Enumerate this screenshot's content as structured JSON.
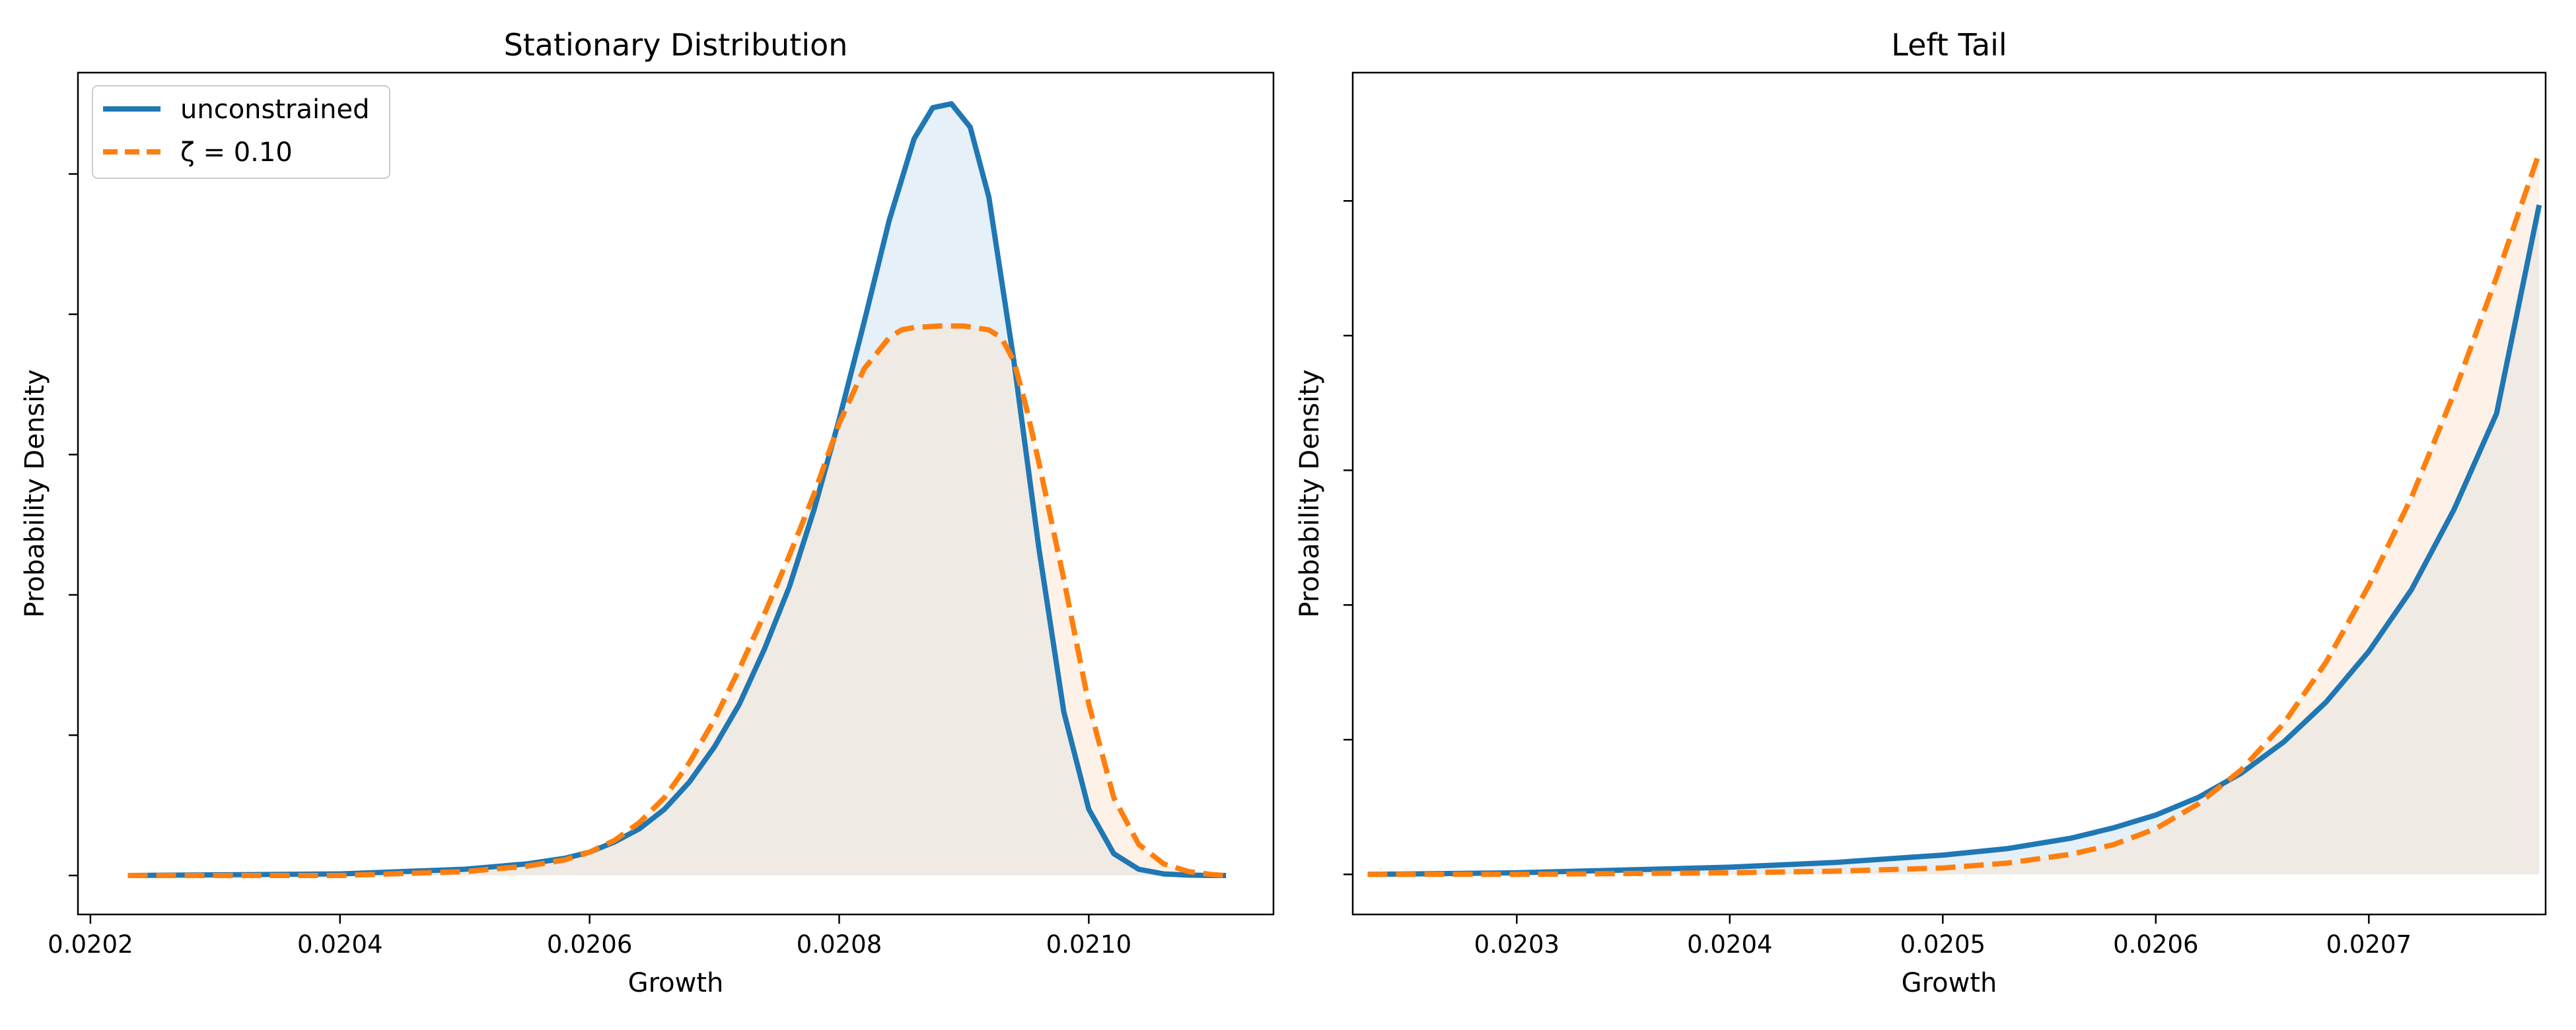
{
  "chart_data": [
    {
      "type": "area",
      "title": "Stationary Distribution",
      "xlabel": "Growth",
      "ylabel": "Probability Density",
      "xlim": [
        0.02019,
        0.021148
      ],
      "ylim": [
        -0.05,
        1.03
      ],
      "x_ticks": [
        0.0202,
        0.0204,
        0.0206,
        0.0208,
        0.021
      ],
      "x_tick_labels": [
        "0.0202",
        "0.0204",
        "0.0206",
        "0.0208",
        "0.0210"
      ],
      "y_ticks": [
        0,
        0.18,
        0.36,
        0.54,
        0.72,
        0.9
      ],
      "y_tick_labels_shown": false,
      "grid": false,
      "legend": {
        "placement": "upper-left",
        "entries": [
          {
            "label": "unconstrained",
            "series": 0
          },
          {
            "label": "ζ = 0.10",
            "series": 1
          }
        ]
      },
      "series": [
        {
          "name": "unconstrained",
          "color": "#1f77b4",
          "line_style": "solid",
          "fill": "#c8ddf0",
          "x": [
            0.02023,
            0.0204,
            0.0205,
            0.02055,
            0.02058,
            0.0206,
            0.02062,
            0.02064,
            0.02066,
            0.02068,
            0.0207,
            0.02072,
            0.02074,
            0.02076,
            0.02078,
            0.0208,
            0.02082,
            0.02084,
            0.02086,
            0.020875,
            0.02089,
            0.020905,
            0.02092,
            0.02094,
            0.02096,
            0.02098,
            0.021,
            0.02102,
            0.02104,
            0.02106,
            0.02108,
            0.0211,
            0.02111
          ],
          "y": [
            0,
            0.002,
            0.008,
            0.015,
            0.022,
            0.03,
            0.043,
            0.06,
            0.085,
            0.12,
            0.165,
            0.22,
            0.29,
            0.37,
            0.47,
            0.585,
            0.71,
            0.84,
            0.945,
            0.985,
            0.99,
            0.96,
            0.87,
            0.66,
            0.42,
            0.21,
            0.085,
            0.028,
            0.008,
            0.002,
            0.0005,
            0,
            0
          ]
        },
        {
          "name": "ζ = 0.10",
          "color": "#ff7f0e",
          "line_style": "dashed",
          "fill": "#fde3cc",
          "x": [
            0.02023,
            0.0204,
            0.0205,
            0.02055,
            0.02058,
            0.0206,
            0.02062,
            0.02064,
            0.02066,
            0.02068,
            0.0207,
            0.02072,
            0.02074,
            0.02076,
            0.02078,
            0.0208,
            0.02082,
            0.02084,
            0.02085,
            0.02086,
            0.02088,
            0.0209,
            0.02092,
            0.02093,
            0.02094,
            0.02095,
            0.02096,
            0.02098,
            0.021,
            0.02102,
            0.02104,
            0.02106,
            0.02108,
            0.0211,
            0.02111
          ],
          "y": [
            0,
            0,
            0.005,
            0.012,
            0.02,
            0.03,
            0.045,
            0.068,
            0.1,
            0.145,
            0.2,
            0.265,
            0.335,
            0.41,
            0.49,
            0.58,
            0.65,
            0.69,
            0.7,
            0.703,
            0.705,
            0.705,
            0.7,
            0.69,
            0.66,
            0.6,
            0.53,
            0.38,
            0.22,
            0.1,
            0.04,
            0.015,
            0.005,
            0.001,
            0
          ]
        }
      ]
    },
    {
      "type": "area",
      "title": "Left Tail",
      "xlabel": "Growth",
      "ylabel": "Probability Density",
      "xlim": [
        0.020223,
        0.020783
      ],
      "ylim": [
        -0.005,
        0.1
      ],
      "x_ticks": [
        0.0203,
        0.0204,
        0.0205,
        0.0206,
        0.0207
      ],
      "x_tick_labels": [
        "0.0203",
        "0.0204",
        "0.0205",
        "0.0206",
        "0.0207"
      ],
      "y_ticks": [
        0,
        0.0168,
        0.0336,
        0.0504,
        0.0672,
        0.084
      ],
      "y_tick_labels_shown": false,
      "grid": false,
      "series": [
        {
          "name": "unconstrained",
          "color": "#1f77b4",
          "line_style": "solid",
          "fill": "#c8ddf0",
          "x": [
            0.02023,
            0.0203,
            0.0204,
            0.02045,
            0.0205,
            0.02053,
            0.02056,
            0.02058,
            0.0206,
            0.02062,
            0.02064,
            0.02066,
            0.02068,
            0.0207,
            0.02072,
            0.02074,
            0.02076,
            0.02078
          ],
          "y": [
            0,
            0.0002,
            0.0009,
            0.0015,
            0.0024,
            0.0032,
            0.0045,
            0.0058,
            0.0074,
            0.0096,
            0.0126,
            0.0165,
            0.0215,
            0.0278,
            0.0355,
            0.0455,
            0.0575,
            0.0835
          ]
        },
        {
          "name": "ζ = 0.10",
          "color": "#ff7f0e",
          "line_style": "dashed",
          "fill": "#fde3cc",
          "x": [
            0.02023,
            0.0203,
            0.0204,
            0.02045,
            0.0205,
            0.02053,
            0.02056,
            0.02058,
            0.0206,
            0.02062,
            0.02064,
            0.02066,
            0.02068,
            0.0207,
            0.02072,
            0.02074,
            0.02076,
            0.02078
          ],
          "y": [
            0,
            0,
            0.0002,
            0.0004,
            0.0008,
            0.0014,
            0.0025,
            0.0037,
            0.0057,
            0.0088,
            0.013,
            0.0188,
            0.0265,
            0.036,
            0.047,
            0.06,
            0.0745,
            0.09
          ]
        }
      ]
    }
  ]
}
